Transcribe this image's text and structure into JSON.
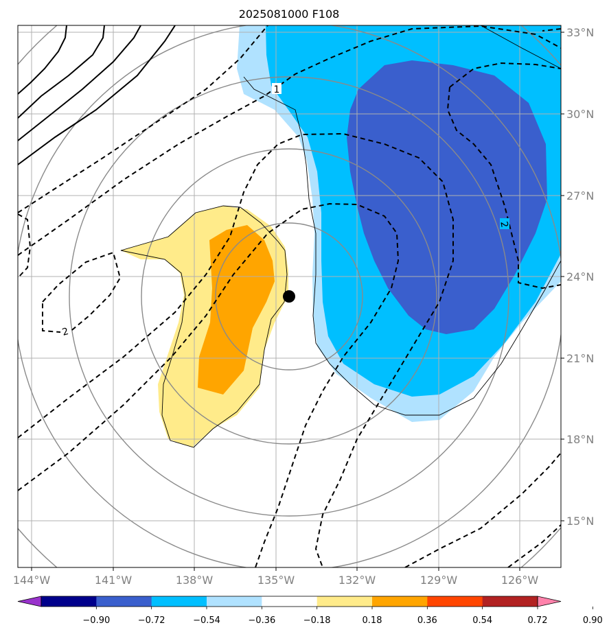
{
  "title": "2025081000 F108",
  "x_axis": {
    "ticks": [
      "144°W",
      "141°W",
      "138°W",
      "135°W",
      "132°W",
      "129°W",
      "126°W"
    ]
  },
  "y_axis": {
    "ticks": [
      "33°N",
      "30°N",
      "27°N",
      "24°N",
      "21°N",
      "18°N",
      "15°N"
    ]
  },
  "colorbar": {
    "ticks": [
      "−0.90",
      "−0.72",
      "−0.54",
      "−0.36",
      "−0.18",
      "0.18",
      "0.36",
      "0.54",
      "0.72",
      "0.90"
    ],
    "colors": [
      "#9932cc",
      "#00008b",
      "#3a5fcd",
      "#00bfff",
      "#b0e2ff",
      "#ffffff",
      "#ffeb8a",
      "#ffa500",
      "#ff4500",
      "#b22222",
      "#ff82ab"
    ]
  },
  "contour_labels": {
    "dashed_1": "1",
    "dashed_2_east": "2",
    "dashed_2_west": "2"
  },
  "storm_center": {
    "lon": -134.5,
    "lat": 23.3
  },
  "chart_data": {
    "type": "heatmap",
    "title": "2025081000 F108",
    "xlim": [
      -144.5,
      -124.5
    ],
    "ylim": [
      13.5,
      33.2
    ],
    "x_ticks": [
      -144,
      -141,
      -138,
      -135,
      -132,
      -129,
      -126
    ],
    "y_ticks": [
      33,
      30,
      27,
      24,
      21,
      18,
      15
    ],
    "colorbar_levels": [
      -0.9,
      -0.72,
      -0.54,
      -0.36,
      -0.18,
      0.18,
      0.36,
      0.54,
      0.72,
      0.9
    ],
    "grid": true,
    "storm_center": {
      "lon": -134.5,
      "lat": 23.3
    }
  }
}
